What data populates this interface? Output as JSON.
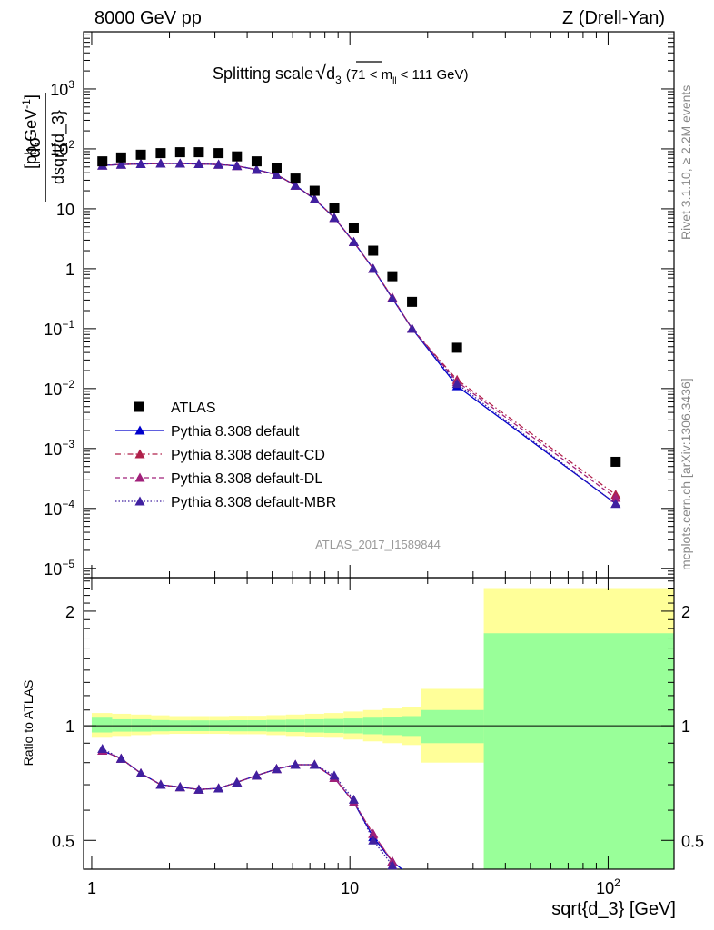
{
  "header": {
    "left": "8000 GeV pp",
    "right": "Z (Drell-Yan)"
  },
  "side_labels": {
    "rivet": "Rivet 3.1.10, ≥ 2.2M events",
    "mcplots": "mcplots.cern.ch [arXiv:1306.3436]"
  },
  "plot_title": {
    "main": "Splitting scale",
    "sqrt_symbol": "√",
    "var": "d",
    "var_sub": "3",
    "range_open": "(71 < m",
    "range_sub": "ll",
    "range_close": "< 111 GeV)"
  },
  "ylabel_top": {
    "numerator": "dσ",
    "denominator": "dsqrt{d_3}",
    "units": "[pb,GeV",
    "units_sup": "-1",
    "units_close": "]"
  },
  "ylabel_bottom": "Ratio to ATLAS",
  "xlabel": "sqrt{d_3} [GeV]",
  "watermark": "ATLAS_2017_I1589844",
  "colors": {
    "data": "#000000",
    "default": "#0000cc",
    "cd": "#b0204a",
    "dl": "#a0207a",
    "mbr": "#4020a0",
    "band_yellow": "#ffff99",
    "band_green": "#99ff99"
  },
  "chart_data": [
    {
      "type": "scatter",
      "panel": "main",
      "yscale": "log",
      "xscale": "log",
      "xlim": [
        0.93,
        180
      ],
      "ylim": [
        7e-06,
        9000
      ],
      "y_ticks": [
        {
          "v": 1e-05,
          "base": "10",
          "exp": "−5"
        },
        {
          "v": 0.0001,
          "base": "10",
          "exp": "−4"
        },
        {
          "v": 0.001,
          "base": "10",
          "exp": "−3"
        },
        {
          "v": 0.01,
          "base": "10",
          "exp": "−2"
        },
        {
          "v": 0.1,
          "base": "10",
          "exp": "−1"
        },
        {
          "v": 1,
          "base": "1",
          "exp": ""
        },
        {
          "v": 10,
          "base": "10",
          "exp": ""
        },
        {
          "v": 100,
          "base": "10",
          "exp": "2"
        },
        {
          "v": 1000,
          "base": "10",
          "exp": "3"
        }
      ],
      "legend_position": "bottom-left",
      "series": [
        {
          "name": "ATLAS",
          "key": "data",
          "style": "square",
          "x": [
            1.1,
            1.3,
            1.55,
            1.85,
            2.2,
            2.6,
            3.1,
            3.65,
            4.35,
            5.2,
            6.15,
            7.3,
            8.7,
            10.35,
            12.3,
            14.6,
            17.4,
            26.0,
            107.0
          ],
          "y": [
            62,
            72,
            80,
            85,
            88,
            88,
            85,
            75,
            62,
            48,
            32,
            20,
            10.5,
            4.8,
            2.0,
            0.75,
            0.28,
            0.048,
            0.0006
          ]
        },
        {
          "name": "Pythia 8.308 default",
          "key": "default",
          "style": "solid",
          "x": [
            1.1,
            1.3,
            1.55,
            1.85,
            2.2,
            2.6,
            3.1,
            3.65,
            4.35,
            5.2,
            6.15,
            7.3,
            8.7,
            10.35,
            12.3,
            14.6,
            17.4,
            26.0,
            107.0
          ],
          "y": [
            53,
            55,
            56,
            57,
            57,
            56,
            55,
            52,
            45,
            37,
            24.5,
            14.5,
            7.1,
            2.8,
            1.0,
            0.32,
            0.1,
            0.011,
            0.00012
          ]
        },
        {
          "name": "Pythia 8.308 default-CD",
          "key": "cd",
          "style": "dashdot",
          "x": [
            1.1,
            1.3,
            1.55,
            1.85,
            2.2,
            2.6,
            3.1,
            3.65,
            4.35,
            5.2,
            6.15,
            7.3,
            8.7,
            10.35,
            12.3,
            14.6,
            17.4,
            26.0,
            107.0
          ],
          "y": [
            53,
            55,
            56,
            57,
            57,
            56,
            55,
            52,
            45,
            37,
            24.5,
            14.5,
            7.1,
            2.8,
            1.0,
            0.33,
            0.1,
            0.014,
            0.00017
          ]
        },
        {
          "name": "Pythia 8.308 default-DL",
          "key": "dl",
          "style": "dashed",
          "x": [
            1.1,
            1.3,
            1.55,
            1.85,
            2.2,
            2.6,
            3.1,
            3.65,
            4.35,
            5.2,
            6.15,
            7.3,
            8.7,
            10.35,
            12.3,
            14.6,
            17.4,
            26.0,
            107.0
          ],
          "y": [
            53,
            55,
            56,
            57,
            57,
            56,
            55,
            52,
            45,
            37,
            24.5,
            14.5,
            7.1,
            2.8,
            1.0,
            0.33,
            0.1,
            0.013,
            0.00015
          ]
        },
        {
          "name": "Pythia 8.308 default-MBR",
          "key": "mbr",
          "style": "dotted",
          "x": [
            1.1,
            1.3,
            1.55,
            1.85,
            2.2,
            2.6,
            3.1,
            3.65,
            4.35,
            5.2,
            6.15,
            7.3,
            8.7,
            10.35,
            12.3,
            14.6,
            17.4,
            26.0,
            107.0
          ],
          "y": [
            53,
            55,
            56,
            57,
            57,
            56,
            55,
            52,
            45,
            37,
            24.5,
            14.5,
            7.1,
            2.8,
            1.0,
            0.32,
            0.1,
            0.012,
            0.00012
          ]
        }
      ]
    },
    {
      "type": "line",
      "panel": "ratio",
      "xscale": "log",
      "yscale": "log",
      "xlim": [
        0.93,
        180
      ],
      "ylim": [
        0.42,
        2.45
      ],
      "y_ticks": [
        {
          "v": 0.5,
          "label": "0.5"
        },
        {
          "v": 1,
          "label": "1"
        },
        {
          "v": 2,
          "label": "2"
        }
      ],
      "x_ticks": [
        {
          "v": 1,
          "label": "1",
          "exp": ""
        },
        {
          "v": 10,
          "label": "10",
          "exp": ""
        },
        {
          "v": 100,
          "label": "10",
          "exp": "2"
        }
      ],
      "bands": [
        {
          "x0": 1.0,
          "x1": 1.2,
          "yellow": [
            0.93,
            1.08
          ],
          "green": [
            0.96,
            1.05
          ]
        },
        {
          "x0": 1.2,
          "x1": 1.42,
          "yellow": [
            0.94,
            1.075
          ],
          "green": [
            0.965,
            1.04
          ]
        },
        {
          "x0": 1.42,
          "x1": 1.7,
          "yellow": [
            0.945,
            1.07
          ],
          "green": [
            0.965,
            1.04
          ]
        },
        {
          "x0": 1.7,
          "x1": 2.0,
          "yellow": [
            0.95,
            1.065
          ],
          "green": [
            0.967,
            1.035
          ]
        },
        {
          "x0": 2.0,
          "x1": 2.4,
          "yellow": [
            0.952,
            1.06
          ],
          "green": [
            0.968,
            1.033
          ]
        },
        {
          "x0": 2.4,
          "x1": 2.85,
          "yellow": [
            0.952,
            1.06
          ],
          "green": [
            0.968,
            1.033
          ]
        },
        {
          "x0": 2.85,
          "x1": 3.4,
          "yellow": [
            0.952,
            1.06
          ],
          "green": [
            0.968,
            1.033
          ]
        },
        {
          "x0": 3.4,
          "x1": 4.0,
          "yellow": [
            0.95,
            1.062
          ],
          "green": [
            0.967,
            1.034
          ]
        },
        {
          "x0": 4.0,
          "x1": 4.75,
          "yellow": [
            0.95,
            1.062
          ],
          "green": [
            0.967,
            1.034
          ]
        },
        {
          "x0": 4.75,
          "x1": 5.65,
          "yellow": [
            0.945,
            1.066
          ],
          "green": [
            0.965,
            1.036
          ]
        },
        {
          "x0": 5.65,
          "x1": 6.7,
          "yellow": [
            0.94,
            1.07
          ],
          "green": [
            0.963,
            1.038
          ]
        },
        {
          "x0": 6.7,
          "x1": 7.95,
          "yellow": [
            0.935,
            1.075
          ],
          "green": [
            0.96,
            1.04
          ]
        },
        {
          "x0": 7.95,
          "x1": 9.45,
          "yellow": [
            0.93,
            1.08
          ],
          "green": [
            0.958,
            1.042
          ]
        },
        {
          "x0": 9.45,
          "x1": 11.25,
          "yellow": [
            0.92,
            1.09
          ],
          "green": [
            0.955,
            1.045
          ]
        },
        {
          "x0": 11.25,
          "x1": 13.4,
          "yellow": [
            0.91,
            1.1
          ],
          "green": [
            0.95,
            1.05
          ]
        },
        {
          "x0": 13.4,
          "x1": 15.9,
          "yellow": [
            0.9,
            1.11
          ],
          "green": [
            0.945,
            1.055
          ]
        },
        {
          "x0": 15.9,
          "x1": 18.9,
          "yellow": [
            0.89,
            1.12
          ],
          "green": [
            0.94,
            1.06
          ]
        },
        {
          "x0": 18.9,
          "x1": 33.0,
          "yellow": [
            0.8,
            1.25
          ],
          "green": [
            0.9,
            1.1
          ]
        },
        {
          "x0": 33.0,
          "x1": 180,
          "yellow": [
            0.4,
            2.3
          ],
          "green": [
            0.4,
            1.75
          ]
        }
      ],
      "series": [
        {
          "name": "Pythia 8.308 default",
          "key": "default",
          "x": [
            1.1,
            1.3,
            1.55,
            1.85,
            2.2,
            2.6,
            3.1,
            3.65,
            4.35,
            5.2,
            6.15,
            7.3,
            8.7,
            10.35,
            12.3,
            14.6,
            17.4
          ],
          "y": [
            0.86,
            0.82,
            0.75,
            0.7,
            0.69,
            0.68,
            0.685,
            0.71,
            0.74,
            0.77,
            0.79,
            0.79,
            0.73,
            0.63,
            0.51,
            0.44,
            0.4
          ]
        },
        {
          "name": "Pythia 8.308 default-CD",
          "key": "cd",
          "x": [
            1.1,
            1.3,
            1.55,
            1.85,
            2.2,
            2.6,
            3.1,
            3.65,
            4.35,
            5.2,
            6.15,
            7.3,
            8.7,
            10.35,
            12.3,
            14.6
          ],
          "y": [
            0.86,
            0.82,
            0.75,
            0.7,
            0.69,
            0.68,
            0.685,
            0.71,
            0.74,
            0.77,
            0.79,
            0.79,
            0.73,
            0.63,
            0.52,
            0.44
          ]
        },
        {
          "name": "Pythia 8.308 default-DL",
          "key": "dl",
          "x": [
            1.1,
            1.3,
            1.55,
            1.85,
            2.2,
            2.6,
            3.1,
            3.65,
            4.35,
            5.2,
            6.15,
            7.3,
            8.7,
            10.35,
            12.3,
            14.6
          ],
          "y": [
            0.86,
            0.82,
            0.75,
            0.7,
            0.69,
            0.68,
            0.685,
            0.71,
            0.74,
            0.77,
            0.79,
            0.79,
            0.73,
            0.63,
            0.52,
            0.44
          ]
        },
        {
          "name": "Pythia 8.308 default-MBR",
          "key": "mbr",
          "x": [
            1.1,
            1.3,
            1.55,
            1.85,
            2.2,
            2.6,
            3.1,
            3.65,
            4.35,
            5.2,
            6.15,
            7.3,
            8.7,
            10.35,
            12.3,
            14.6
          ],
          "y": [
            0.87,
            0.82,
            0.75,
            0.7,
            0.69,
            0.68,
            0.685,
            0.71,
            0.74,
            0.77,
            0.79,
            0.79,
            0.74,
            0.64,
            0.5,
            0.43
          ]
        }
      ]
    }
  ]
}
